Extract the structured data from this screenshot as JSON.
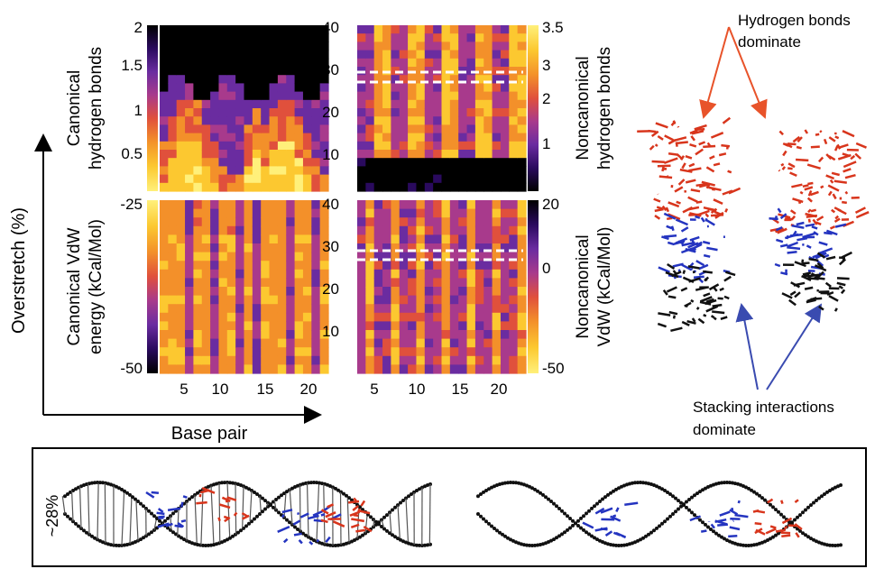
{
  "figure": {
    "y_axis_label": "Overstretch (%)",
    "x_axis_label": "Base pair",
    "bottom_strip_label": "~28%"
  },
  "annotations": {
    "hydrogen": [
      "Hydrogen bonds",
      "dominate"
    ],
    "stacking": [
      "Stacking interactions",
      "dominate"
    ]
  },
  "colors": {
    "hydrogen_arrow": "#e8532a",
    "stacking_arrow": "#3a4bb0",
    "dna_backbone": "#111111",
    "dna_canonical_highlight": "#d8351c",
    "dna_noncanonical_highlight": "#2434c0",
    "colormap": [
      "#000000",
      "#2a0a5e",
      "#6a2ca0",
      "#a83a8c",
      "#e0503c",
      "#f3902a",
      "#fcc830",
      "#fff07a"
    ]
  },
  "chart_data": [
    {
      "id": "canonical-hbonds",
      "type": "heatmap",
      "ylabel_lines": [
        "Canonical",
        "hydrogen bonds"
      ],
      "colorbar_ticks": [
        "2",
        "1.5",
        "1",
        "0.5"
      ],
      "colorbar_range": [
        0,
        2
      ],
      "x": [
        2,
        22
      ],
      "y": [
        0,
        40
      ],
      "xticks": [],
      "yticks": []
    },
    {
      "id": "noncanonical-hbonds",
      "type": "heatmap",
      "ylabel_lines": [
        "Noncanonical",
        "hydrogen bonds"
      ],
      "colorbar_ticks": [
        "3.5",
        "3",
        "2",
        "1"
      ],
      "colorbar_range": [
        0,
        3.5
      ],
      "x": [
        2,
        22
      ],
      "y": [
        0,
        40
      ],
      "xticks": [],
      "yticks": [
        "40",
        "30",
        "20",
        "10"
      ],
      "highlight_band_y": [
        27,
        29
      ]
    },
    {
      "id": "canonical-vdw",
      "type": "heatmap",
      "ylabel_lines": [
        "Canonical VdW",
        "energy (kCal/Mol)"
      ],
      "colorbar_ticks": [
        "-25",
        "-50"
      ],
      "colorbar_range": [
        -50,
        -25
      ],
      "x": [
        2,
        22
      ],
      "y": [
        0,
        40
      ],
      "xticks": [
        "5",
        "10",
        "15",
        "20"
      ],
      "yticks": []
    },
    {
      "id": "noncanonical-vdw",
      "type": "heatmap",
      "ylabel_lines": [
        "Noncanonical",
        "VdW (kCal/Mol)"
      ],
      "colorbar_ticks": [
        "20",
        "0",
        "-50"
      ],
      "colorbar_range": [
        -50,
        20
      ],
      "x": [
        2,
        22
      ],
      "y": [
        0,
        40
      ],
      "xticks": [
        "5",
        "10",
        "15",
        "20"
      ],
      "yticks": [
        "40",
        "30",
        "20",
        "10"
      ],
      "highlight_band_y": [
        27,
        29
      ]
    }
  ]
}
